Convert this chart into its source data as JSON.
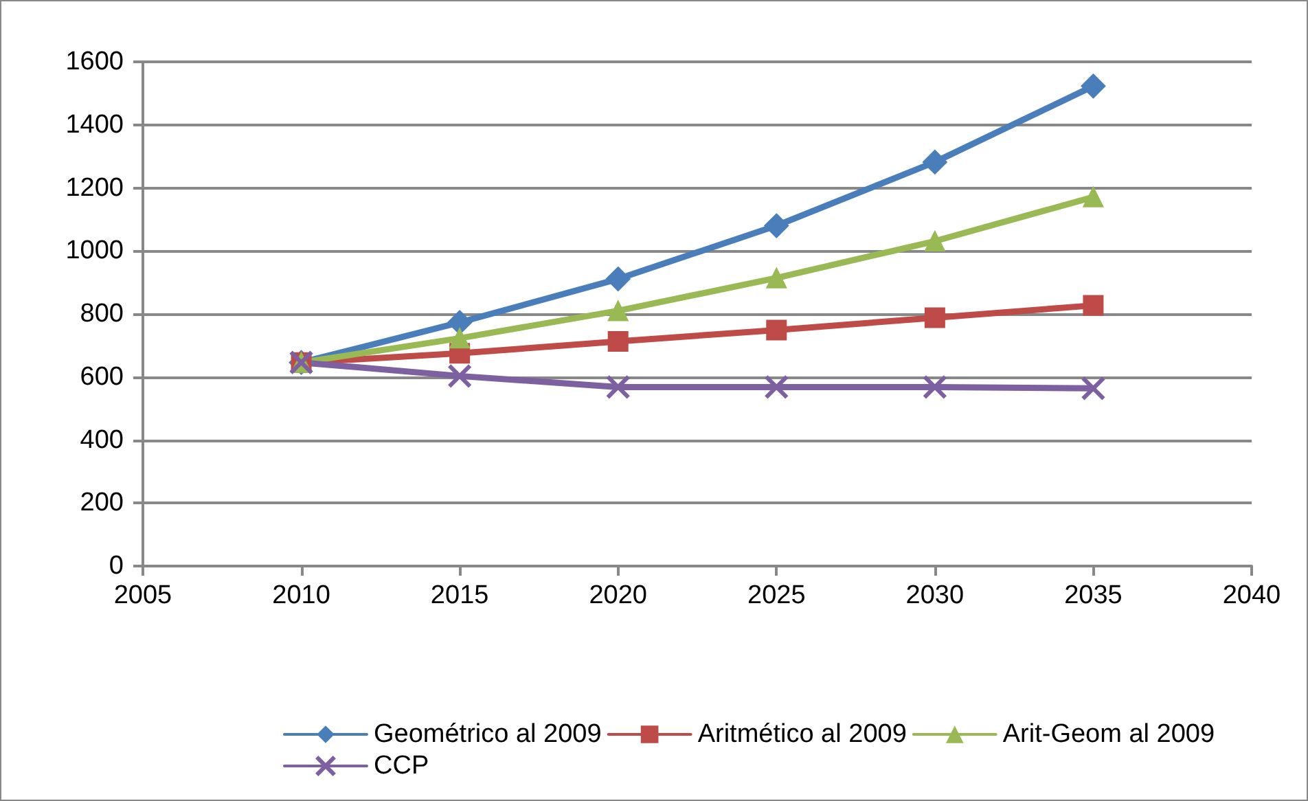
{
  "chart_data": {
    "type": "line",
    "x": [
      2010,
      2015,
      2020,
      2025,
      2030,
      2035
    ],
    "series": [
      {
        "name": "Geométrico al 2009",
        "color": "#4a7ebb",
        "marker": "diamond",
        "values": [
          646,
          773,
          911,
          1080,
          1282,
          1523
        ]
      },
      {
        "name": "Aritmético al 2009",
        "color": "#be4b48",
        "marker": "square",
        "values": [
          646,
          675,
          713,
          749,
          788,
          827
        ]
      },
      {
        "name": "Arit-Geom al 2009",
        "color": "#98b954",
        "marker": "triangle",
        "values": [
          646,
          723,
          810,
          914,
          1031,
          1171
        ]
      },
      {
        "name": "CCP",
        "color": "#7d60a0",
        "marker": "cross",
        "values": [
          646,
          603,
          568,
          568,
          568,
          564
        ]
      }
    ],
    "xlim": [
      2005,
      2040
    ],
    "xticks": [
      2005,
      2010,
      2015,
      2020,
      2025,
      2030,
      2035,
      2040
    ],
    "ylim": [
      0,
      1600
    ],
    "yticks": [
      0,
      200,
      400,
      600,
      800,
      1000,
      1200,
      1400,
      1600
    ],
    "grid": "y",
    "legend": "bottom",
    "line_style": "solid"
  }
}
